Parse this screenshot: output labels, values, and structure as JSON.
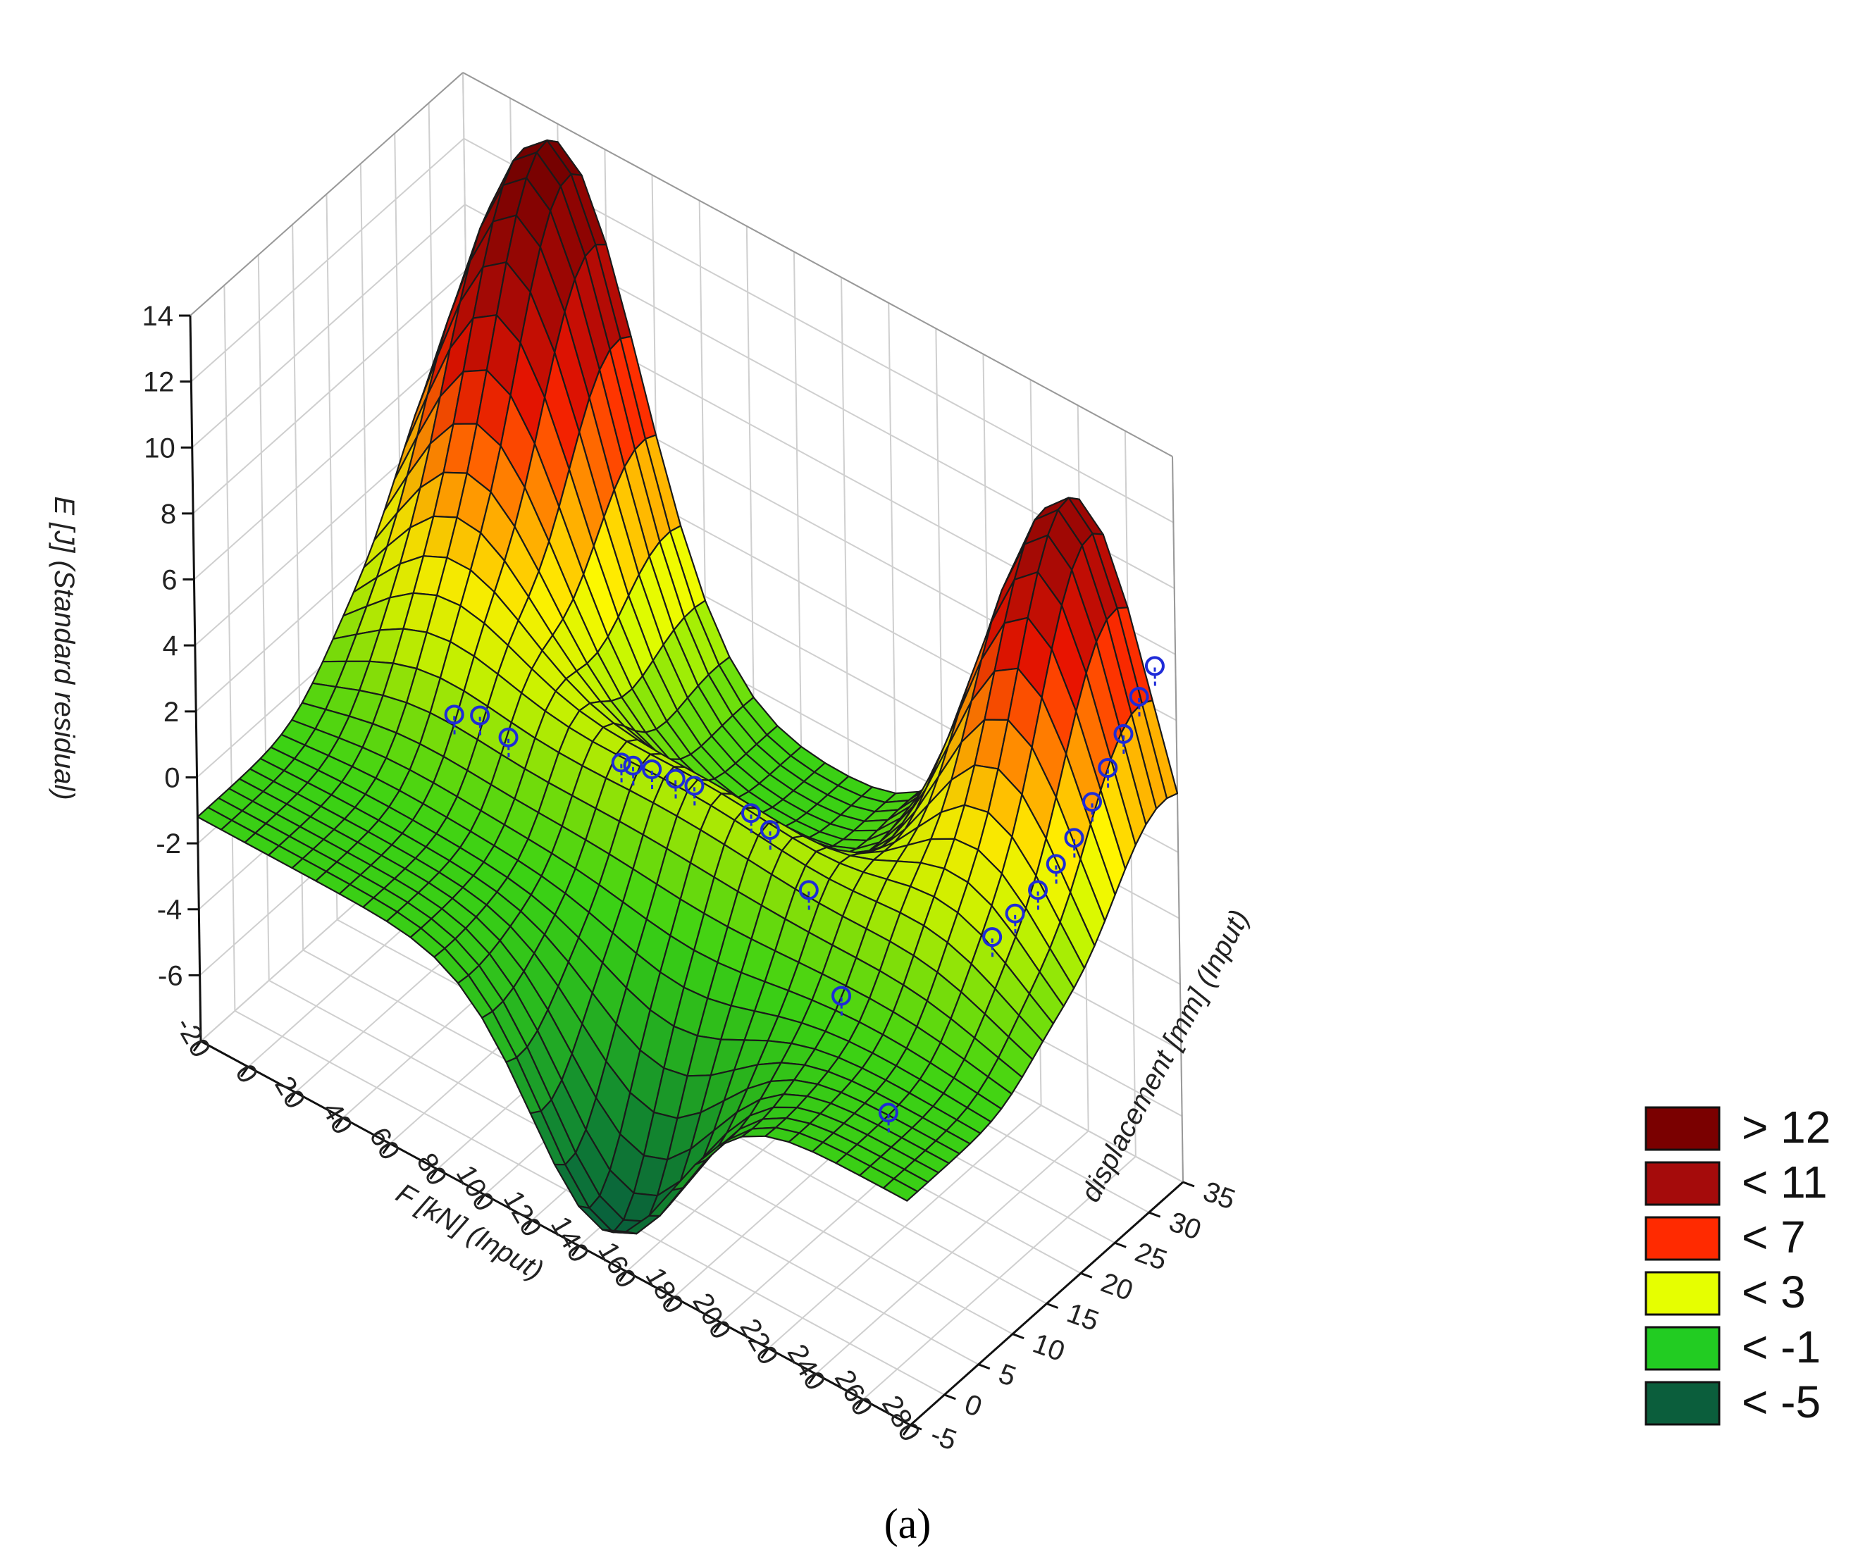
{
  "chart_data": {
    "type": "surface",
    "title": "",
    "caption": "(a)",
    "xlabel": "F [kN] (Input)",
    "ylabel": "displacement [mm] (Input)",
    "zlabel": "E [J] (Standard residual)",
    "x_ticks": [
      "-20",
      "0",
      "20",
      "40",
      "60",
      "80",
      "100",
      "120",
      "140",
      "160",
      "180",
      "200",
      "220",
      "240",
      "260",
      "280"
    ],
    "y_ticks": [
      "-5",
      "0",
      "5",
      "10",
      "15",
      "20",
      "25",
      "30",
      "35"
    ],
    "z_ticks": [
      "14",
      "12",
      "10",
      "8",
      "6",
      "4",
      "2",
      "0",
      "-2",
      "-4",
      "-6"
    ],
    "xlim": [
      -20,
      280
    ],
    "ylim": [
      -5,
      35
    ],
    "zlim": [
      -8,
      14
    ],
    "surface_features": [
      {
        "kind": "peak",
        "x": 20,
        "y": 33,
        "z": 13.8
      },
      {
        "kind": "peak",
        "x": 240,
        "y": 33,
        "z": 11.5
      },
      {
        "kind": "trough",
        "x": 150,
        "y": -3,
        "z": -7.5
      },
      {
        "kind": "ridge",
        "from_x": 70,
        "to_x": 190,
        "y": 14,
        "z": 2
      }
    ],
    "points": [
      {
        "x": 40,
        "y": 12,
        "z": 0.5
      },
      {
        "x": 48,
        "y": 13,
        "z": 0.6
      },
      {
        "x": 60,
        "y": 13,
        "z": 0.4
      },
      {
        "x": 105,
        "y": 14,
        "z": 1.2
      },
      {
        "x": 110,
        "y": 14,
        "z": 1.3
      },
      {
        "x": 118,
        "y": 14,
        "z": 1.5
      },
      {
        "x": 128,
        "y": 14,
        "z": 1.6
      },
      {
        "x": 136,
        "y": 14,
        "z": 1.7
      },
      {
        "x": 160,
        "y": 14,
        "z": 1.8
      },
      {
        "x": 168,
        "y": 14,
        "z": 1.6
      },
      {
        "x": 190,
        "y": 12,
        "z": 1.0
      },
      {
        "x": 215,
        "y": 8,
        "z": -0.5
      },
      {
        "x": 252,
        "y": 2,
        "z": -1.5
      },
      {
        "x": 262,
        "y": 14,
        "z": 2.0
      },
      {
        "x": 266,
        "y": 16,
        "z": 2.5
      },
      {
        "x": 270,
        "y": 18,
        "z": 3.0
      },
      {
        "x": 272,
        "y": 20,
        "z": 3.5
      },
      {
        "x": 274,
        "y": 22,
        "z": 4.0
      },
      {
        "x": 276,
        "y": 24,
        "z": 4.8
      },
      {
        "x": 277,
        "y": 26,
        "z": 5.5
      },
      {
        "x": 278,
        "y": 28,
        "z": 6.2
      },
      {
        "x": 279,
        "y": 30,
        "z": 7.0
      },
      {
        "x": 280,
        "y": 32,
        "z": 7.6
      }
    ],
    "legend": [
      {
        "label": "> 12",
        "color": "#7a0000"
      },
      {
        "label": "< 11",
        "color": "#a50b0b"
      },
      {
        "label": "< 7",
        "color": "#ff2a00"
      },
      {
        "label": "< 3",
        "color": "#e6ff00"
      },
      {
        "label": "< -1",
        "color": "#22cc22"
      },
      {
        "label": "< -5",
        "color": "#0b5e3c"
      }
    ],
    "legend_position": "bottom-right",
    "grid": true
  }
}
